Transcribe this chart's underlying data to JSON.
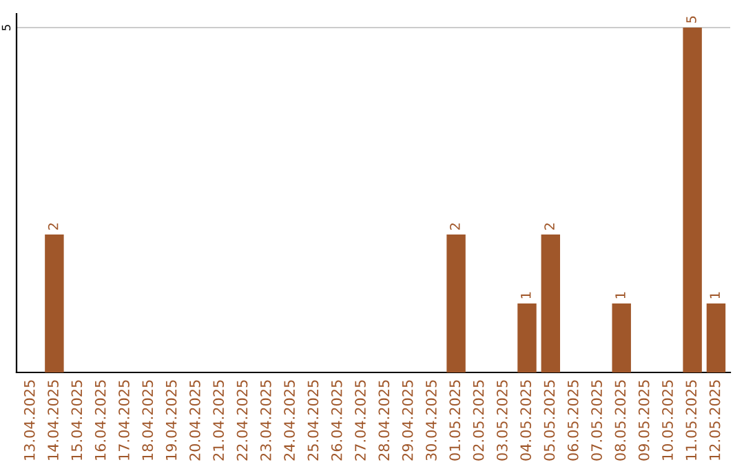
{
  "chart_data": {
    "type": "bar",
    "categories": [
      "13.04.2025",
      "14.04.2025",
      "15.04.2025",
      "16.04.2025",
      "17.04.2025",
      "18.04.2025",
      "19.04.2025",
      "20.04.2025",
      "21.04.2025",
      "22.04.2025",
      "23.04.2025",
      "24.04.2025",
      "25.04.2025",
      "26.04.2025",
      "27.04.2025",
      "28.04.2025",
      "29.04.2025",
      "30.04.2025",
      "01.05.2025",
      "02.05.2025",
      "03.05.2025",
      "04.05.2025",
      "05.05.2025",
      "06.05.2025",
      "07.05.2025",
      "08.05.2025",
      "09.05.2025",
      "10.05.2025",
      "11.05.2025",
      "12.05.2025"
    ],
    "values": [
      0,
      2,
      0,
      0,
      0,
      0,
      0,
      0,
      0,
      0,
      0,
      0,
      0,
      0,
      0,
      0,
      0,
      0,
      2,
      0,
      0,
      1,
      2,
      0,
      0,
      1,
      0,
      0,
      5,
      1
    ],
    "value_labels": [
      null,
      "2",
      null,
      null,
      null,
      null,
      null,
      null,
      null,
      null,
      null,
      null,
      null,
      null,
      null,
      null,
      null,
      null,
      "2",
      null,
      null,
      "1",
      "2",
      null,
      null,
      "1",
      null,
      null,
      "5",
      "1"
    ],
    "color": "#a0572a",
    "ylim": [
      0,
      5.2
    ],
    "yticks": [
      5
    ],
    "grid": "y",
    "legend": false
  }
}
